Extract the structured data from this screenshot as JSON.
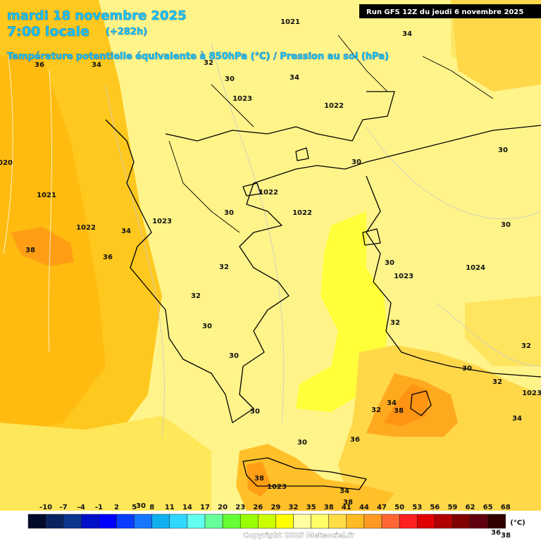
{
  "header": {
    "date": "mardi 18 novembre 2025",
    "time": "7:00 locale",
    "lead": "(+282h)",
    "subtitle": "Température potentielle équivalente à 850hPa (°C) / Pression au sol (hPa)",
    "run": "Run GFS 12Z du jeudi 6 novembre 2025"
  },
  "map_labels": [
    "1021",
    "34",
    "34",
    "32",
    "36",
    "30",
    "34",
    "1023",
    "1022",
    "30",
    "30",
    "1022",
    "30",
    "1022",
    "1021",
    "1023",
    "1022",
    "34",
    "30",
    "38",
    "36",
    "32",
    "30",
    "1023",
    "1024",
    "32",
    "30",
    "32",
    "30",
    "32",
    "30",
    "32",
    "1023",
    "34",
    "38",
    "32",
    "30",
    "34",
    "36",
    "30",
    "38",
    "1023",
    "34",
    "38",
    "30",
    "36",
    "38",
    "1020"
  ],
  "colorbar": {
    "ticks": [
      "-10",
      "-7",
      "-4",
      "-1",
      "2",
      "5",
      "8",
      "11",
      "14",
      "17",
      "20",
      "23",
      "26",
      "29",
      "32",
      "35",
      "38",
      "41",
      "44",
      "47",
      "50",
      "53",
      "56",
      "59",
      "62",
      "65",
      "68"
    ],
    "colors": [
      "#000a2a",
      "#0a2260",
      "#0c3590",
      "#0010c8",
      "#0000ff",
      "#0a3cff",
      "#1478ff",
      "#10b0f0",
      "#30d8ff",
      "#60fff0",
      "#66ff99",
      "#66ff33",
      "#99ff00",
      "#ccff00",
      "#ffff00",
      "#ffffa0",
      "#ffff66",
      "#ffdd44",
      "#ffbb22",
      "#ff9922",
      "#ff6633",
      "#ff2020",
      "#e00000",
      "#b00000",
      "#800000",
      "#600010",
      "#300000"
    ],
    "unit": "(°C)"
  },
  "copyright": "Copyright 2025 Meteociel.fr"
}
